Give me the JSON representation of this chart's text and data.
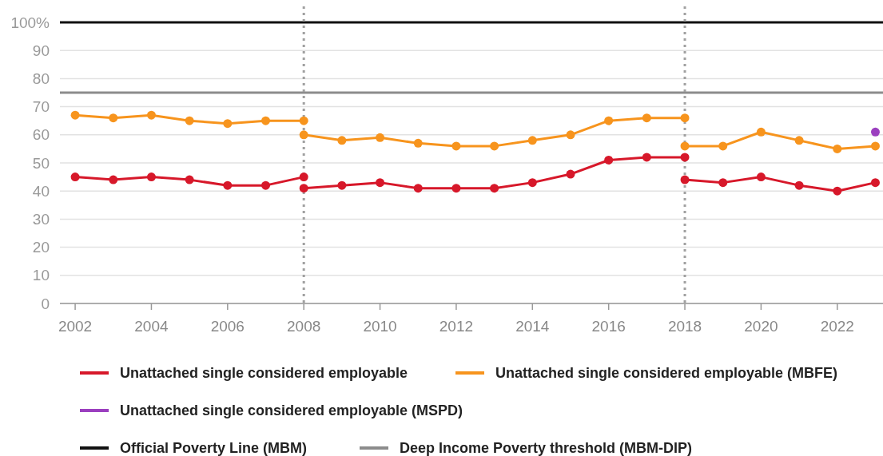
{
  "chart_data": {
    "type": "line",
    "x": [
      2002,
      2003,
      2004,
      2005,
      2006,
      2007,
      2008,
      2008,
      2009,
      2010,
      2011,
      2012,
      2013,
      2014,
      2015,
      2016,
      2017,
      2018,
      2018,
      2019,
      2020,
      2021,
      2022,
      2023
    ],
    "series": [
      {
        "name": "Unattached single considered employable",
        "color": "#d7182a",
        "values": [
          45,
          44,
          45,
          44,
          42,
          42,
          45,
          41,
          42,
          43,
          41,
          41,
          41,
          43,
          46,
          51,
          52,
          52,
          44,
          43,
          45,
          42,
          40,
          43
        ]
      },
      {
        "name": "Unattached single considered employable (MBFE)",
        "color": "#f7941d",
        "values": [
          67,
          66,
          67,
          65,
          64,
          65,
          65,
          60,
          58,
          59,
          57,
          56,
          56,
          58,
          60,
          65,
          66,
          66,
          56,
          56,
          61,
          58,
          55,
          56
        ]
      },
      {
        "name": "Unattached single considered employable (MSPD)",
        "color": "#9b3fbf",
        "x": [
          2023
        ],
        "values": [
          61
        ]
      }
    ],
    "ref_lines": [
      {
        "axis": "y",
        "value": 100,
        "label": "Official Poverty Line (MBM)",
        "color": "#111111",
        "line_style": "solid"
      },
      {
        "axis": "y",
        "value": 75,
        "label": "Deep Income Poverty threshold (MBM-DIP)",
        "color": "#8c8c8c",
        "line_style": "solid"
      },
      {
        "axis": "x",
        "value": 2008,
        "color": "#a0a0a0",
        "line_style": "dotted"
      },
      {
        "axis": "x",
        "value": 2018,
        "color": "#a0a0a0",
        "line_style": "dotted"
      }
    ],
    "xlim": [
      2001.6,
      2023.2
    ],
    "xticks": [
      2002,
      2004,
      2006,
      2008,
      2010,
      2012,
      2014,
      2016,
      2018,
      2020,
      2022
    ],
    "ylim": [
      0,
      100
    ],
    "yticks": [
      0,
      10,
      20,
      30,
      40,
      50,
      60,
      70,
      80,
      90,
      {
        "value": 100,
        "label": "100%"
      }
    ],
    "grid": "y",
    "legend": "bottom",
    "marker": "circle",
    "line_style": "solid"
  }
}
